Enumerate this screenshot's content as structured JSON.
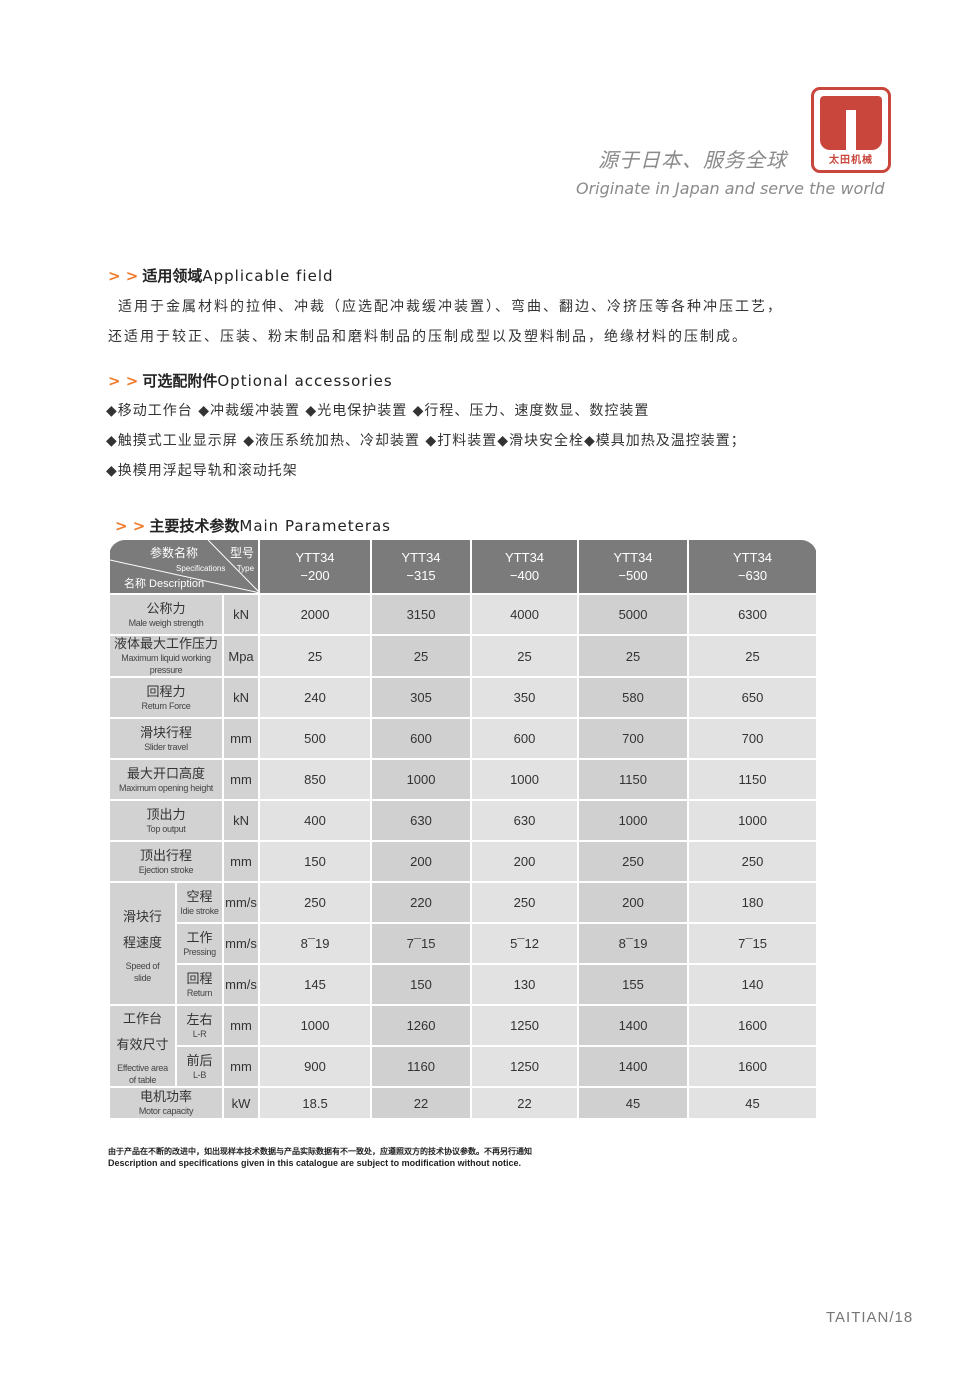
{
  "header": {
    "slogan_cn": "源于日本、服务全球",
    "slogan_en": "Originate in Japan and serve the world",
    "logo_text": "太田机械",
    "logo_color": "#c9463c"
  },
  "applicable": {
    "arrows": "> >",
    "title_cn": "适用领域",
    "title_en": "Applicable field",
    "line1": "适用于金属材料的拉伸、冲裁（应选配冲裁缓冲装置）、弯曲、翻边、冷挤压等各种冲压工艺，",
    "line2": "还适用于较正、压装、粉末制品和磨料制品的压制成型以及塑料制品，绝缘材料的压制成。"
  },
  "accessories": {
    "arrows": "> >",
    "title_cn": "可选配附件",
    "title_en": "Optional accessories",
    "line1": "◆移动工作台  ◆冲裁缓冲装置  ◆光电保护装置  ◆行程、压力、速度数显、数控装置",
    "line2": "◆触摸式工业显示屏  ◆液压系统加热、冷却装置  ◆打料装置◆滑块安全栓◆模具加热及温控装置；",
    "line3": "◆换模用浮起导轨和滚动托架"
  },
  "params": {
    "arrows": "> >",
    "title_cn": "主要技术参数",
    "title_en": "Main Parameteras",
    "corner": {
      "param_cn": "参数名称",
      "param_en": "Specifications",
      "type_cn": "型号",
      "type_en": "Type",
      "desc": "名称 Description"
    },
    "models": [
      {
        "l1": "YTT34",
        "l2": "−200"
      },
      {
        "l1": "YTT34",
        "l2": "−315"
      },
      {
        "l1": "YTT34",
        "l2": "−400"
      },
      {
        "l1": "YTT34",
        "l2": "−500"
      },
      {
        "l1": "YTT34",
        "l2": "−630"
      }
    ],
    "rows": [
      {
        "cn": "公称力",
        "en": "Male weigh strength",
        "unit": "kN",
        "values": [
          "2000",
          "3150",
          "4000",
          "5000",
          "6300"
        ]
      },
      {
        "cn": "液体最大工作压力",
        "en": "Maximum liquid working pressure",
        "unit": "Mpa",
        "values": [
          "25",
          "25",
          "25",
          "25",
          "25"
        ]
      },
      {
        "cn": "回程力",
        "en": "Return Force",
        "unit": "kN",
        "values": [
          "240",
          "305",
          "350",
          "580",
          "650"
        ]
      },
      {
        "cn": "滑块行程",
        "en": "Slider travel",
        "unit": "mm",
        "values": [
          "500",
          "600",
          "600",
          "700",
          "700"
        ]
      },
      {
        "cn": "最大开口高度",
        "en": "Maximum opening height",
        "unit": "mm",
        "values": [
          "850",
          "1000",
          "1000",
          "1150",
          "1150"
        ]
      },
      {
        "cn": "顶出力",
        "en": "Top output",
        "unit": "kN",
        "values": [
          "400",
          "630",
          "630",
          "1000",
          "1000"
        ]
      },
      {
        "cn": "顶出行程",
        "en": "Ejection stroke",
        "unit": "mm",
        "values": [
          "150",
          "200",
          "200",
          "250",
          "250"
        ]
      }
    ],
    "groups": [
      {
        "cn": "滑块行\n程速度",
        "en": "Speed of\nslide",
        "subs": [
          {
            "cn": "空程",
            "en": "Idie stroke",
            "unit": "mm/s",
            "values": [
              "250",
              "220",
              "250",
              "200",
              "180"
            ]
          },
          {
            "cn": "工作",
            "en": "Pressing",
            "unit": "mm/s",
            "values": [
              "8¯19",
              "7¯15",
              "5¯12",
              "8¯19",
              "7¯15"
            ]
          },
          {
            "cn": "回程",
            "en": "Return",
            "unit": "mm/s",
            "values": [
              "145",
              "150",
              "130",
              "155",
              "140"
            ]
          }
        ]
      },
      {
        "cn": "工作台\n有效尺寸",
        "en": "Effective area\nof table",
        "subs": [
          {
            "cn": "左右",
            "en": "L-R",
            "unit": "mm",
            "values": [
              "1000",
              "1260",
              "1250",
              "1400",
              "1600"
            ]
          },
          {
            "cn": "前后",
            "en": "L-B",
            "unit": "mm",
            "values": [
              "900",
              "1160",
              "1250",
              "1400",
              "1600"
            ]
          }
        ]
      }
    ],
    "last_rows": [
      {
        "cn": "电机功率",
        "en": "Motor capacity",
        "unit": "kW",
        "values": [
          "18.5",
          "22",
          "22",
          "45",
          "45"
        ]
      }
    ],
    "note_cn": "由于产品在不断的改进中，如出现样本技术数据与产品实际数据有不一致处，应遵照双方的技术协议参数。不再另行通知",
    "note_en": "Description and specifications given in this catalogue are subject to modification without notice."
  },
  "footer": {
    "page": "TAITIAN/18"
  }
}
